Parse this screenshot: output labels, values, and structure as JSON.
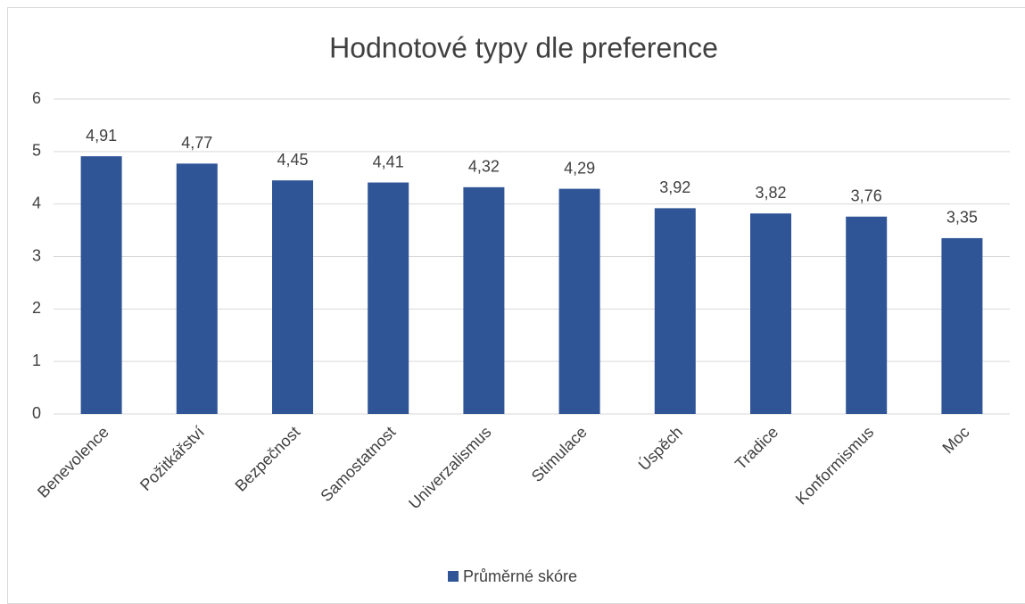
{
  "chart_data": {
    "type": "bar",
    "title": "Hodnotové typy dle preference",
    "categories": [
      "Benevolence",
      "Požitkářství",
      "Bezpečnost",
      "Samostatnost",
      "Univerzalismus",
      "Stimulace",
      "Úspěch",
      "Tradice",
      "Konformismus",
      "Moc"
    ],
    "series": [
      {
        "name": "Průměrné skóre",
        "color": "#2f5597",
        "values": [
          4.91,
          4.77,
          4.45,
          4.41,
          4.32,
          4.29,
          3.92,
          3.82,
          3.76,
          3.35
        ],
        "value_labels": [
          "4,91",
          "4,77",
          "4,45",
          "4,41",
          "4,32",
          "4,29",
          "3,92",
          "3,82",
          "3,76",
          "3,35"
        ]
      }
    ],
    "ylim": [
      0,
      6
    ],
    "yticks": [
      0,
      1,
      2,
      3,
      4,
      5,
      6
    ],
    "grid": true,
    "legend": "bottom"
  }
}
